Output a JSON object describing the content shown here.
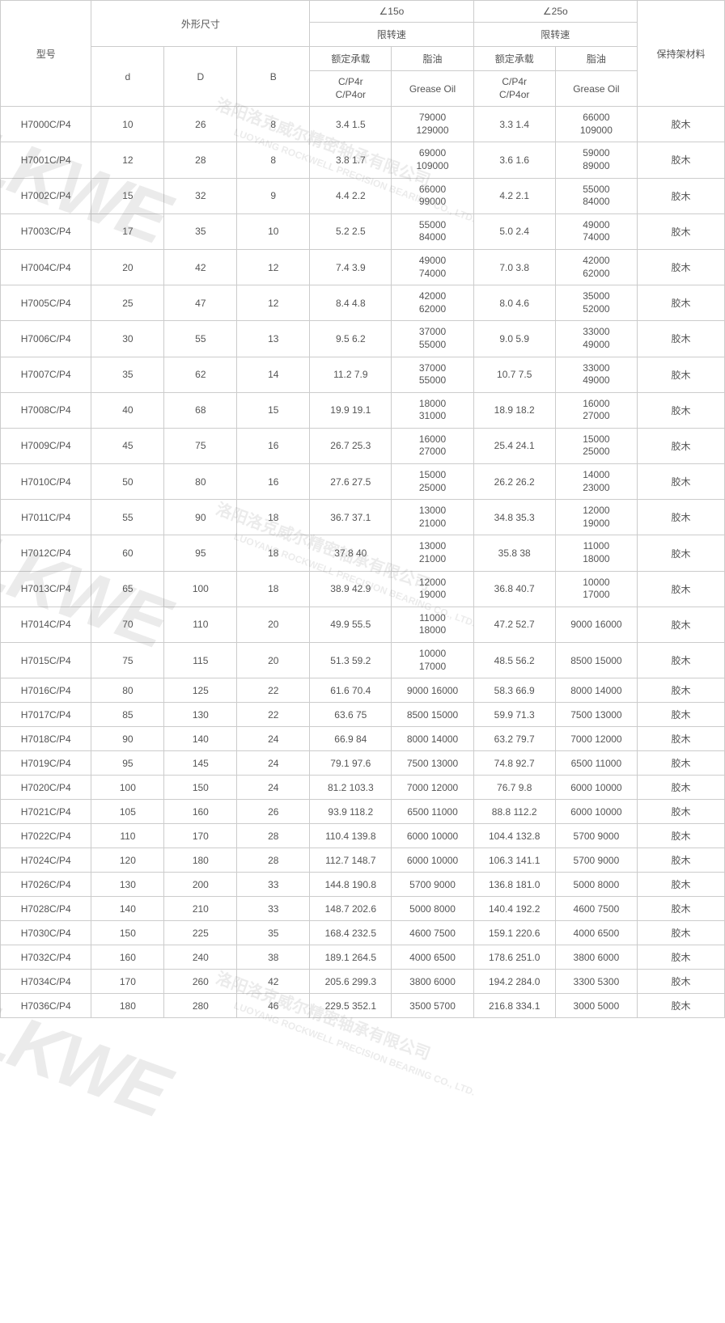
{
  "header": {
    "model": "型号",
    "dimensions": "外形尺寸",
    "angle15": "∠15o",
    "angle25": "∠25o",
    "speed_limit": "限转速",
    "rated_load": "额定承载",
    "grease_oil_label": "脂油",
    "cage_material": "保持架材料",
    "d": "d",
    "D": "D",
    "B": "B",
    "c_p4r": "C/P4r\nC/P4or",
    "grease_oil": "Grease Oil"
  },
  "col_widths": {
    "model": "100",
    "d": "80",
    "D": "80",
    "B": "80",
    "c15": "90",
    "g15": "90",
    "c25": "90",
    "g25": "90",
    "cage": "96"
  },
  "colors": {
    "border": "#cccccc",
    "text": "#555555",
    "bg": "#ffffff"
  },
  "watermark": {
    "big": "LKWE",
    "cn": "洛阳洛克威尔精密轴承有限公司",
    "en": "LUOYANG ROCKWELL PRECISION BEARING CO., LTD."
  },
  "rows": [
    {
      "model": "H7000C/P4",
      "d": "10",
      "D": "26",
      "B": "8",
      "c15": "3.4 1.5",
      "g15": "79000\n129000",
      "c25": "3.3 1.4",
      "g25": "66000\n109000",
      "cage": "胶木"
    },
    {
      "model": "H7001C/P4",
      "d": "12",
      "D": "28",
      "B": "8",
      "c15": "3.8 1.7",
      "g15": "69000\n109000",
      "c25": "3.6 1.6",
      "g25": "59000\n89000",
      "cage": "胶木"
    },
    {
      "model": "H7002C/P4",
      "d": "15",
      "D": "32",
      "B": "9",
      "c15": "4.4 2.2",
      "g15": "66000\n99000",
      "c25": "4.2 2.1",
      "g25": "55000\n84000",
      "cage": "胶木"
    },
    {
      "model": "H7003C/P4",
      "d": "17",
      "D": "35",
      "B": "10",
      "c15": "5.2 2.5",
      "g15": "55000\n84000",
      "c25": "5.0 2.4",
      "g25": "49000\n74000",
      "cage": "胶木"
    },
    {
      "model": "H7004C/P4",
      "d": "20",
      "D": "42",
      "B": "12",
      "c15": "7.4 3.9",
      "g15": "49000\n74000",
      "c25": "7.0 3.8",
      "g25": "42000\n62000",
      "cage": "胶木"
    },
    {
      "model": "H7005C/P4",
      "d": "25",
      "D": "47",
      "B": "12",
      "c15": "8.4 4.8",
      "g15": "42000\n62000",
      "c25": "8.0 4.6",
      "g25": "35000\n52000",
      "cage": "胶木"
    },
    {
      "model": "H7006C/P4",
      "d": "30",
      "D": "55",
      "B": "13",
      "c15": "9.5 6.2",
      "g15": "37000\n55000",
      "c25": "9.0 5.9",
      "g25": "33000\n49000",
      "cage": "胶木"
    },
    {
      "model": "H7007C/P4",
      "d": "35",
      "D": "62",
      "B": "14",
      "c15": "11.2 7.9",
      "g15": "37000\n55000",
      "c25": "10.7 7.5",
      "g25": "33000\n49000",
      "cage": "胶木"
    },
    {
      "model": "H7008C/P4",
      "d": "40",
      "D": "68",
      "B": "15",
      "c15": "19.9 19.1",
      "g15": "18000\n31000",
      "c25": "18.9 18.2",
      "g25": "16000\n27000",
      "cage": "胶木"
    },
    {
      "model": "H7009C/P4",
      "d": "45",
      "D": "75",
      "B": "16",
      "c15": "26.7 25.3",
      "g15": "16000\n27000",
      "c25": "25.4 24.1",
      "g25": "15000\n25000",
      "cage": "胶木"
    },
    {
      "model": "H7010C/P4",
      "d": "50",
      "D": "80",
      "B": "16",
      "c15": "27.6 27.5",
      "g15": "15000\n25000",
      "c25": "26.2 26.2",
      "g25": "14000\n23000",
      "cage": "胶木"
    },
    {
      "model": "H7011C/P4",
      "d": "55",
      "D": "90",
      "B": "18",
      "c15": "36.7 37.1",
      "g15": "13000\n21000",
      "c25": "34.8 35.3",
      "g25": "12000\n19000",
      "cage": "胶木"
    },
    {
      "model": "H7012C/P4",
      "d": "60",
      "D": "95",
      "B": "18",
      "c15": "37.8 40",
      "g15": "13000\n21000",
      "c25": "35.8 38",
      "g25": "11000\n18000",
      "cage": "胶木"
    },
    {
      "model": "H7013C/P4",
      "d": "65",
      "D": "100",
      "B": "18",
      "c15": "38.9 42.9",
      "g15": "12000\n19000",
      "c25": "36.8 40.7",
      "g25": "10000\n17000",
      "cage": "胶木"
    },
    {
      "model": "H7014C/P4",
      "d": "70",
      "D": "110",
      "B": "20",
      "c15": "49.9 55.5",
      "g15": "11000\n18000",
      "c25": "47.2 52.7",
      "g25": "9000 16000",
      "cage": "胶木"
    },
    {
      "model": "H7015C/P4",
      "d": "75",
      "D": "115",
      "B": "20",
      "c15": "51.3 59.2",
      "g15": "10000\n17000",
      "c25": "48.5 56.2",
      "g25": "8500 15000",
      "cage": "胶木"
    },
    {
      "model": "H7016C/P4",
      "d": "80",
      "D": "125",
      "B": "22",
      "c15": "61.6 70.4",
      "g15": "9000 16000",
      "c25": "58.3 66.9",
      "g25": "8000 14000",
      "cage": "胶木"
    },
    {
      "model": "H7017C/P4",
      "d": "85",
      "D": "130",
      "B": "22",
      "c15": "63.6 75",
      "g15": "8500 15000",
      "c25": "59.9 71.3",
      "g25": "7500 13000",
      "cage": "胶木"
    },
    {
      "model": "H7018C/P4",
      "d": "90",
      "D": "140",
      "B": "24",
      "c15": "66.9 84",
      "g15": "8000 14000",
      "c25": "63.2 79.7",
      "g25": "7000 12000",
      "cage": "胶木"
    },
    {
      "model": "H7019C/P4",
      "d": "95",
      "D": "145",
      "B": "24",
      "c15": "79.1 97.6",
      "g15": "7500 13000",
      "c25": "74.8 92.7",
      "g25": "6500 11000",
      "cage": "胶木"
    },
    {
      "model": "H7020C/P4",
      "d": "100",
      "D": "150",
      "B": "24",
      "c15": "81.2 103.3",
      "g15": "7000 12000",
      "c25": "76.7 9.8",
      "g25": "6000 10000",
      "cage": "胶木"
    },
    {
      "model": "H7021C/P4",
      "d": "105",
      "D": "160",
      "B": "26",
      "c15": "93.9 118.2",
      "g15": "6500 11000",
      "c25": "88.8 112.2",
      "g25": "6000 10000",
      "cage": "胶木"
    },
    {
      "model": "H7022C/P4",
      "d": "110",
      "D": "170",
      "B": "28",
      "c15": "110.4 139.8",
      "g15": "6000 10000",
      "c25": "104.4 132.8",
      "g25": "5700 9000",
      "cage": "胶木"
    },
    {
      "model": "H7024C/P4",
      "d": "120",
      "D": "180",
      "B": "28",
      "c15": "112.7 148.7",
      "g15": "6000 10000",
      "c25": "106.3 141.1",
      "g25": "5700 9000",
      "cage": "胶木"
    },
    {
      "model": "H7026C/P4",
      "d": "130",
      "D": "200",
      "B": "33",
      "c15": "144.8 190.8",
      "g15": "5700 9000",
      "c25": "136.8 181.0",
      "g25": "5000 8000",
      "cage": "胶木"
    },
    {
      "model": "H7028C/P4",
      "d": "140",
      "D": "210",
      "B": "33",
      "c15": "148.7 202.6",
      "g15": "5000 8000",
      "c25": "140.4 192.2",
      "g25": "4600 7500",
      "cage": "胶木"
    },
    {
      "model": "H7030C/P4",
      "d": "150",
      "D": "225",
      "B": "35",
      "c15": "168.4 232.5",
      "g15": "4600 7500",
      "c25": "159.1 220.6",
      "g25": "4000 6500",
      "cage": "胶木"
    },
    {
      "model": "H7032C/P4",
      "d": "160",
      "D": "240",
      "B": "38",
      "c15": "189.1 264.5",
      "g15": "4000 6500",
      "c25": "178.6 251.0",
      "g25": "3800 6000",
      "cage": "胶木"
    },
    {
      "model": "H7034C/P4",
      "d": "170",
      "D": "260",
      "B": "42",
      "c15": "205.6 299.3",
      "g15": "3800 6000",
      "c25": "194.2 284.0",
      "g25": "3300 5300",
      "cage": "胶木"
    },
    {
      "model": "H7036C/P4",
      "d": "180",
      "D": "280",
      "B": "46",
      "c15": "229.5 352.1",
      "g15": "3500 5700",
      "c25": "216.8 334.1",
      "g25": "3000 5000",
      "cage": "胶木"
    }
  ]
}
